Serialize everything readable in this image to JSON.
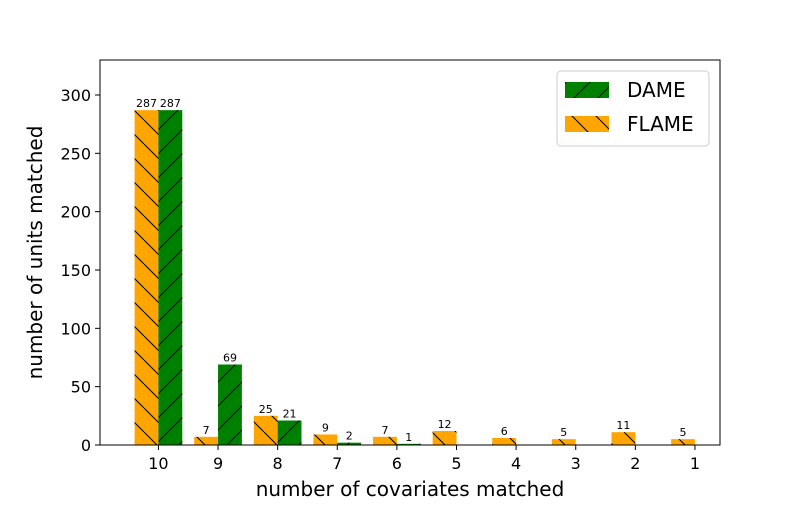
{
  "chart_data": {
    "type": "bar",
    "title": "",
    "xlabel": "number of covariates matched",
    "ylabel": "number of units matched",
    "categories": [
      "10",
      "9",
      "8",
      "7",
      "6",
      "5",
      "4",
      "3",
      "2",
      "1"
    ],
    "series": [
      {
        "name": "FLAME",
        "color": "#ffa500",
        "hatch": "backslash",
        "values": [
          287,
          7,
          25,
          9,
          7,
          12,
          6,
          5,
          11,
          5
        ],
        "labels": [
          "287",
          "7",
          "25",
          "9",
          "7",
          "12",
          "6",
          "5",
          "11",
          "5"
        ]
      },
      {
        "name": "DAME",
        "color": "#008000",
        "hatch": "slash",
        "values": [
          287,
          69,
          21,
          2,
          1,
          null,
          null,
          null,
          null,
          null
        ],
        "labels": [
          "287",
          "69",
          "21",
          "2",
          "1",
          null,
          null,
          null,
          null,
          null
        ]
      }
    ],
    "ylim": [
      0,
      330
    ],
    "yticks": [
      0,
      50,
      100,
      150,
      200,
      250,
      300
    ],
    "ytick_labels": [
      "0",
      "50",
      "100",
      "150",
      "200",
      "250",
      "300"
    ],
    "legend": {
      "position": "top-right",
      "order": [
        "DAME",
        "FLAME"
      ]
    },
    "grid": false
  }
}
